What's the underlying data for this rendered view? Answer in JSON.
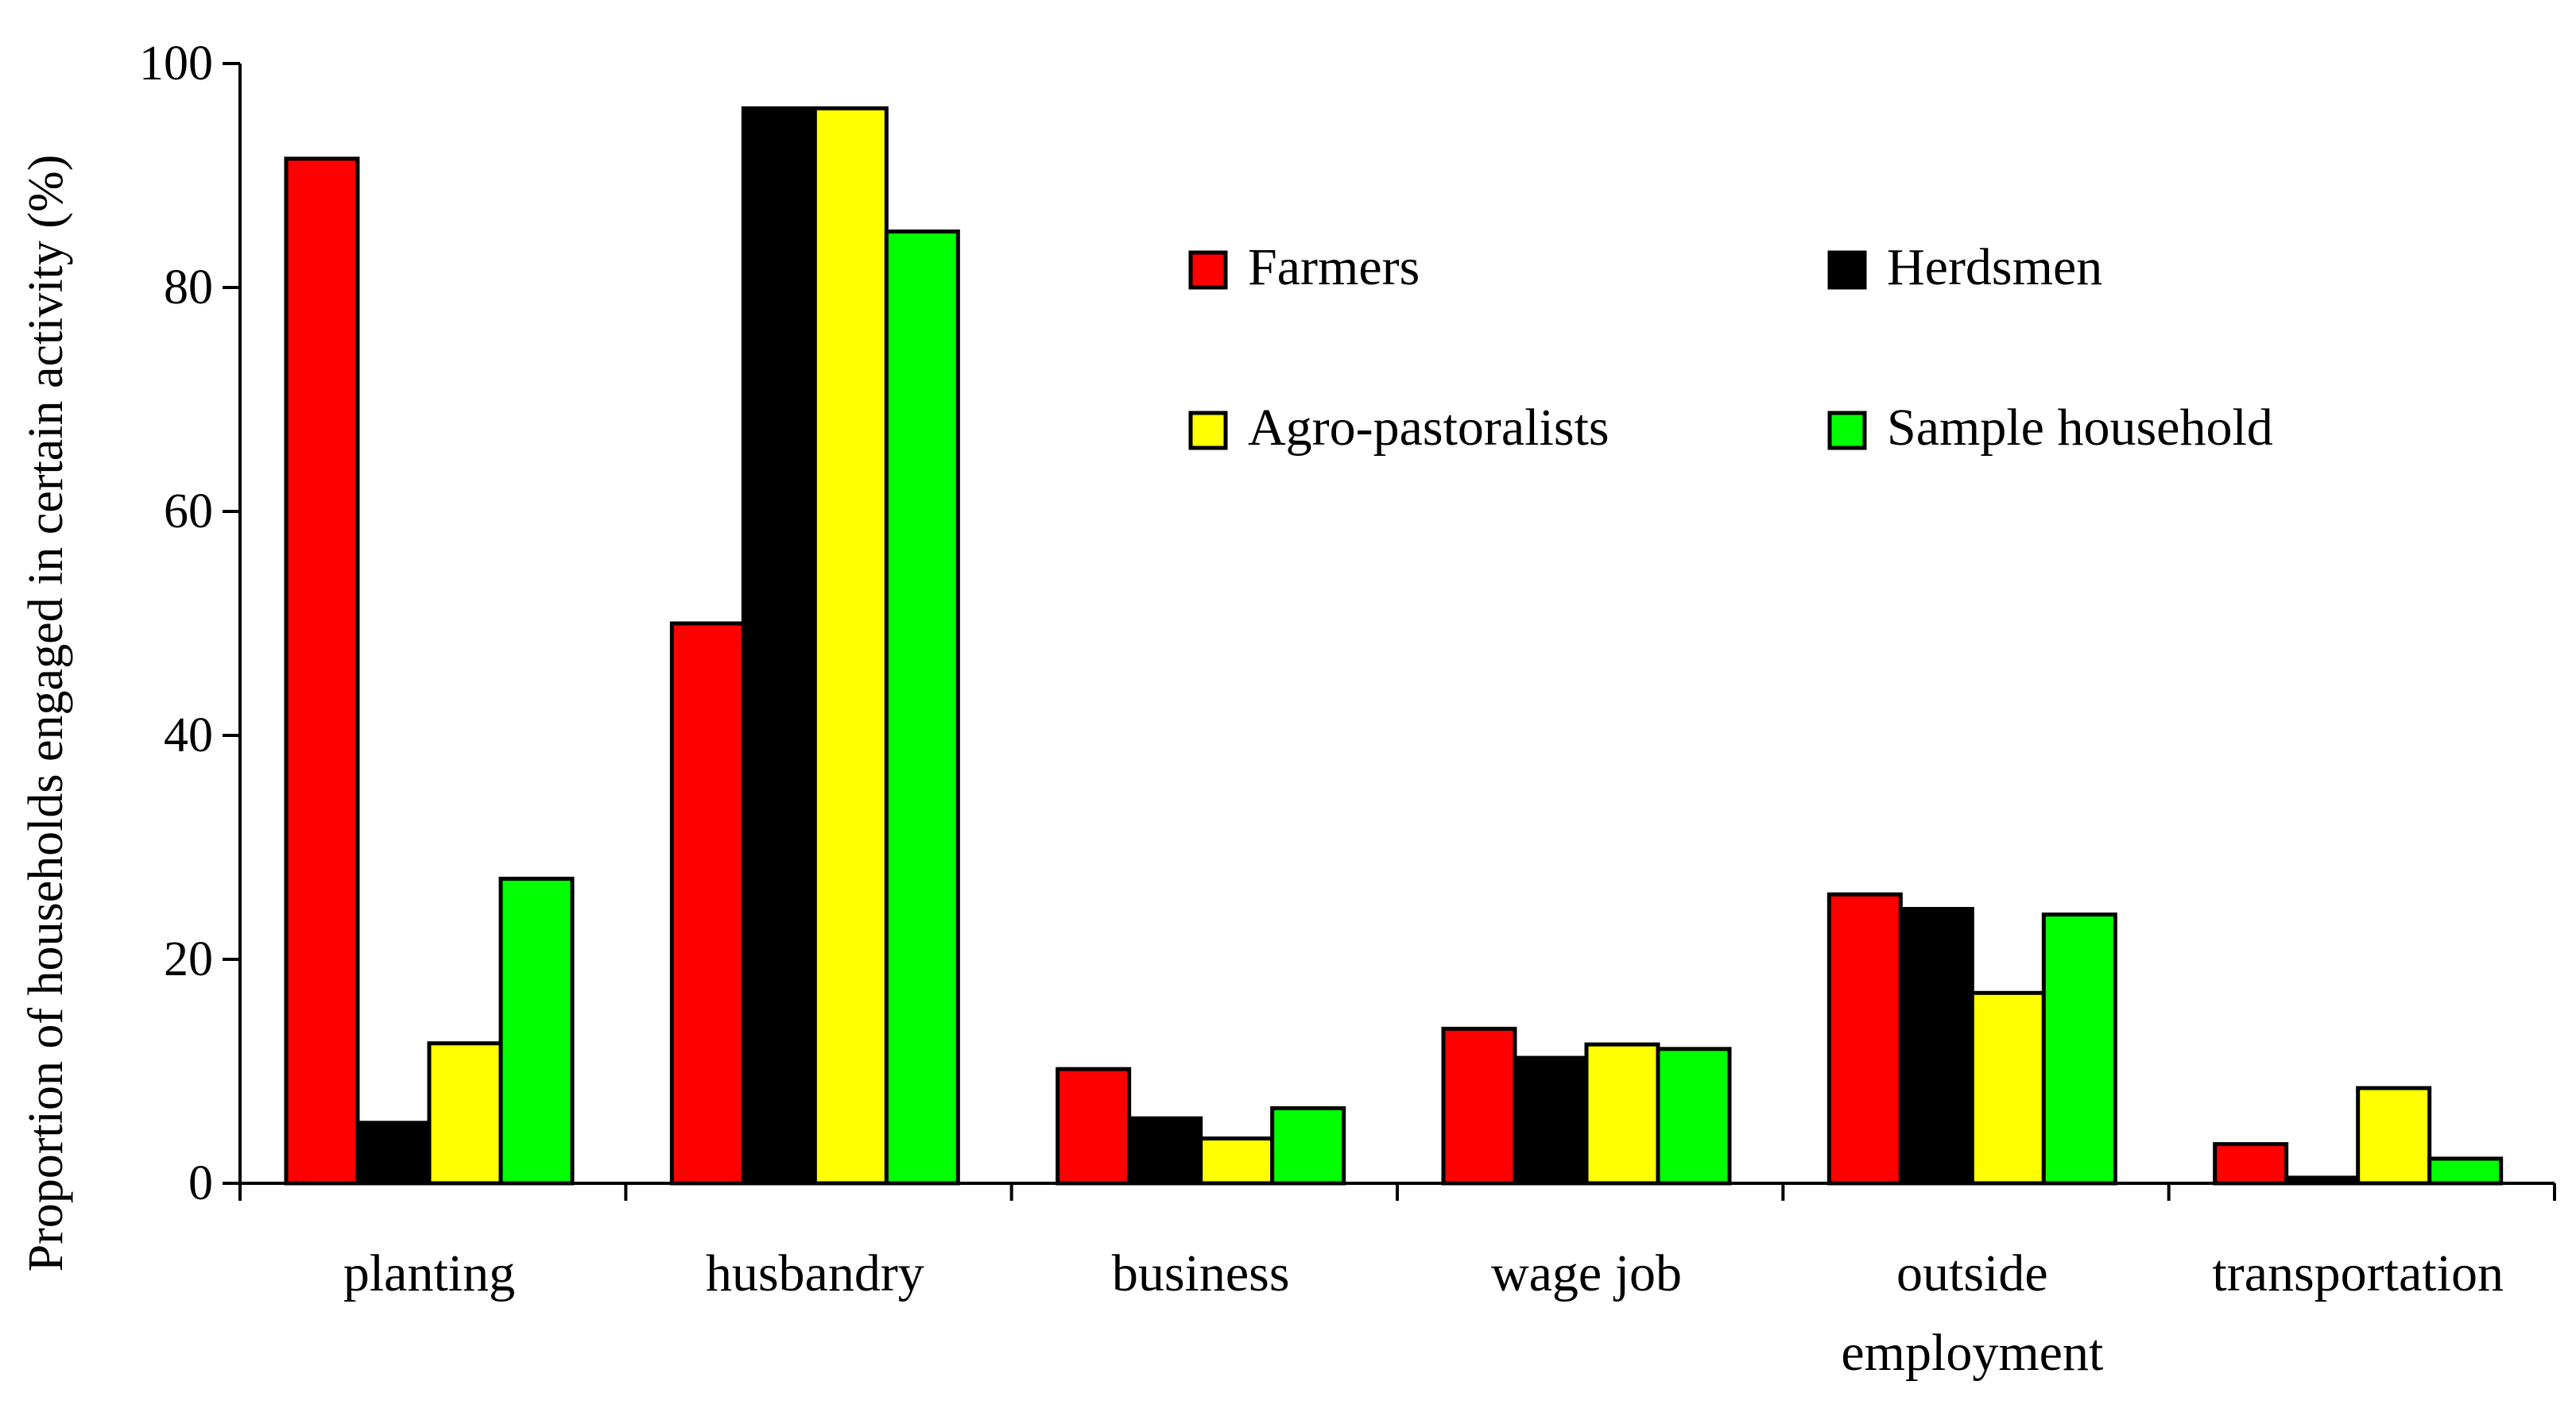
{
  "chart_data": {
    "type": "bar",
    "title": "",
    "xlabel": "",
    "ylabel": "Proportion of households engaged in certain activity (%)",
    "ylim": [
      0,
      100
    ],
    "yticks": [
      "0",
      "20",
      "40",
      "60",
      "80",
      "100"
    ],
    "grid": false,
    "legend_position": "top-right",
    "categories": [
      [
        "planting"
      ],
      [
        "husbandry"
      ],
      [
        "business"
      ],
      [
        "wage job"
      ],
      [
        "outside",
        "employment"
      ],
      [
        "transportation"
      ]
    ],
    "series": [
      {
        "name": "Farmers",
        "color": "#ff0000",
        "values": [
          91.5,
          50.0,
          10.2,
          13.8,
          25.8,
          3.5
        ]
      },
      {
        "name": "Herdsmen",
        "color": "#000000",
        "values": [
          5.4,
          96.0,
          5.8,
          11.2,
          24.5,
          0.5
        ]
      },
      {
        "name": "Agro-pastoralists",
        "color": "#ffff00",
        "values": [
          12.5,
          96.0,
          4.0,
          12.4,
          17.0,
          8.5
        ]
      },
      {
        "name": "Sample household",
        "color": "#00ff00",
        "values": [
          27.2,
          85.0,
          6.7,
          12.0,
          24.0,
          2.2
        ]
      }
    ]
  }
}
